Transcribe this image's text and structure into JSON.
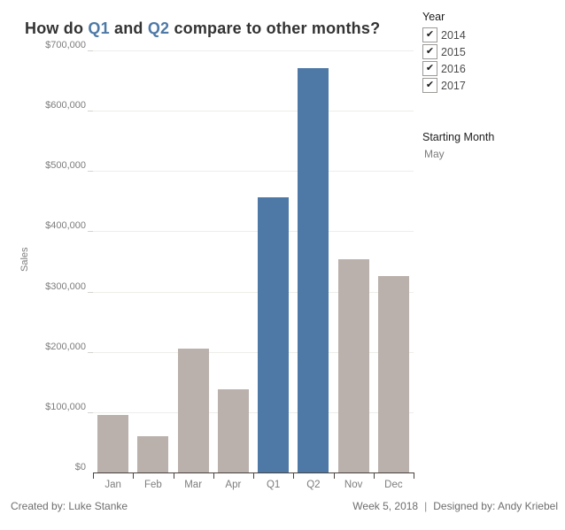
{
  "title": {
    "part1": "How do ",
    "q1": "Q1",
    "part2": " and ",
    "q2": "Q2",
    "part3": " compare to other months?"
  },
  "filters": {
    "year": {
      "label": "Year",
      "options": [
        {
          "label": "2014",
          "checked": true
        },
        {
          "label": "2015",
          "checked": true
        },
        {
          "label": "2016",
          "checked": true
        },
        {
          "label": "2017",
          "checked": true
        }
      ]
    },
    "starting_month": {
      "label": "Starting Month",
      "value": "May"
    }
  },
  "footer": {
    "created": "Created by: Luke Stanke",
    "week": "Week 5, 2018",
    "separator": "|",
    "designed": "Designed by: Andy Kriebel"
  },
  "colors": {
    "highlight_blue": "#4e79a7",
    "bar_gray": "#bab0ac",
    "axis_text": "#7d7d7d",
    "title_text": "#333333"
  },
  "chart_data": {
    "type": "bar",
    "title": "How do Q1 and Q2 compare to other months?",
    "categories": [
      "Jan",
      "Feb",
      "Mar",
      "Apr",
      "Q1",
      "Q2",
      "Nov",
      "Dec"
    ],
    "values": [
      96000,
      60000,
      205000,
      138000,
      457000,
      671000,
      354000,
      326000
    ],
    "bar_colors": [
      "#bab0ac",
      "#bab0ac",
      "#bab0ac",
      "#bab0ac",
      "#4e79a7",
      "#4e79a7",
      "#bab0ac",
      "#bab0ac"
    ],
    "highlighted": [
      "Q1",
      "Q2"
    ],
    "xlabel": "",
    "ylabel": "Sales",
    "ylim": [
      0,
      700000
    ],
    "ytick_step": 100000,
    "ytick_labels": [
      "$0",
      "$100,000",
      "$200,000",
      "$300,000",
      "$400,000",
      "$500,000",
      "$600,000",
      "$700,000"
    ],
    "grid": true,
    "legend": false
  }
}
